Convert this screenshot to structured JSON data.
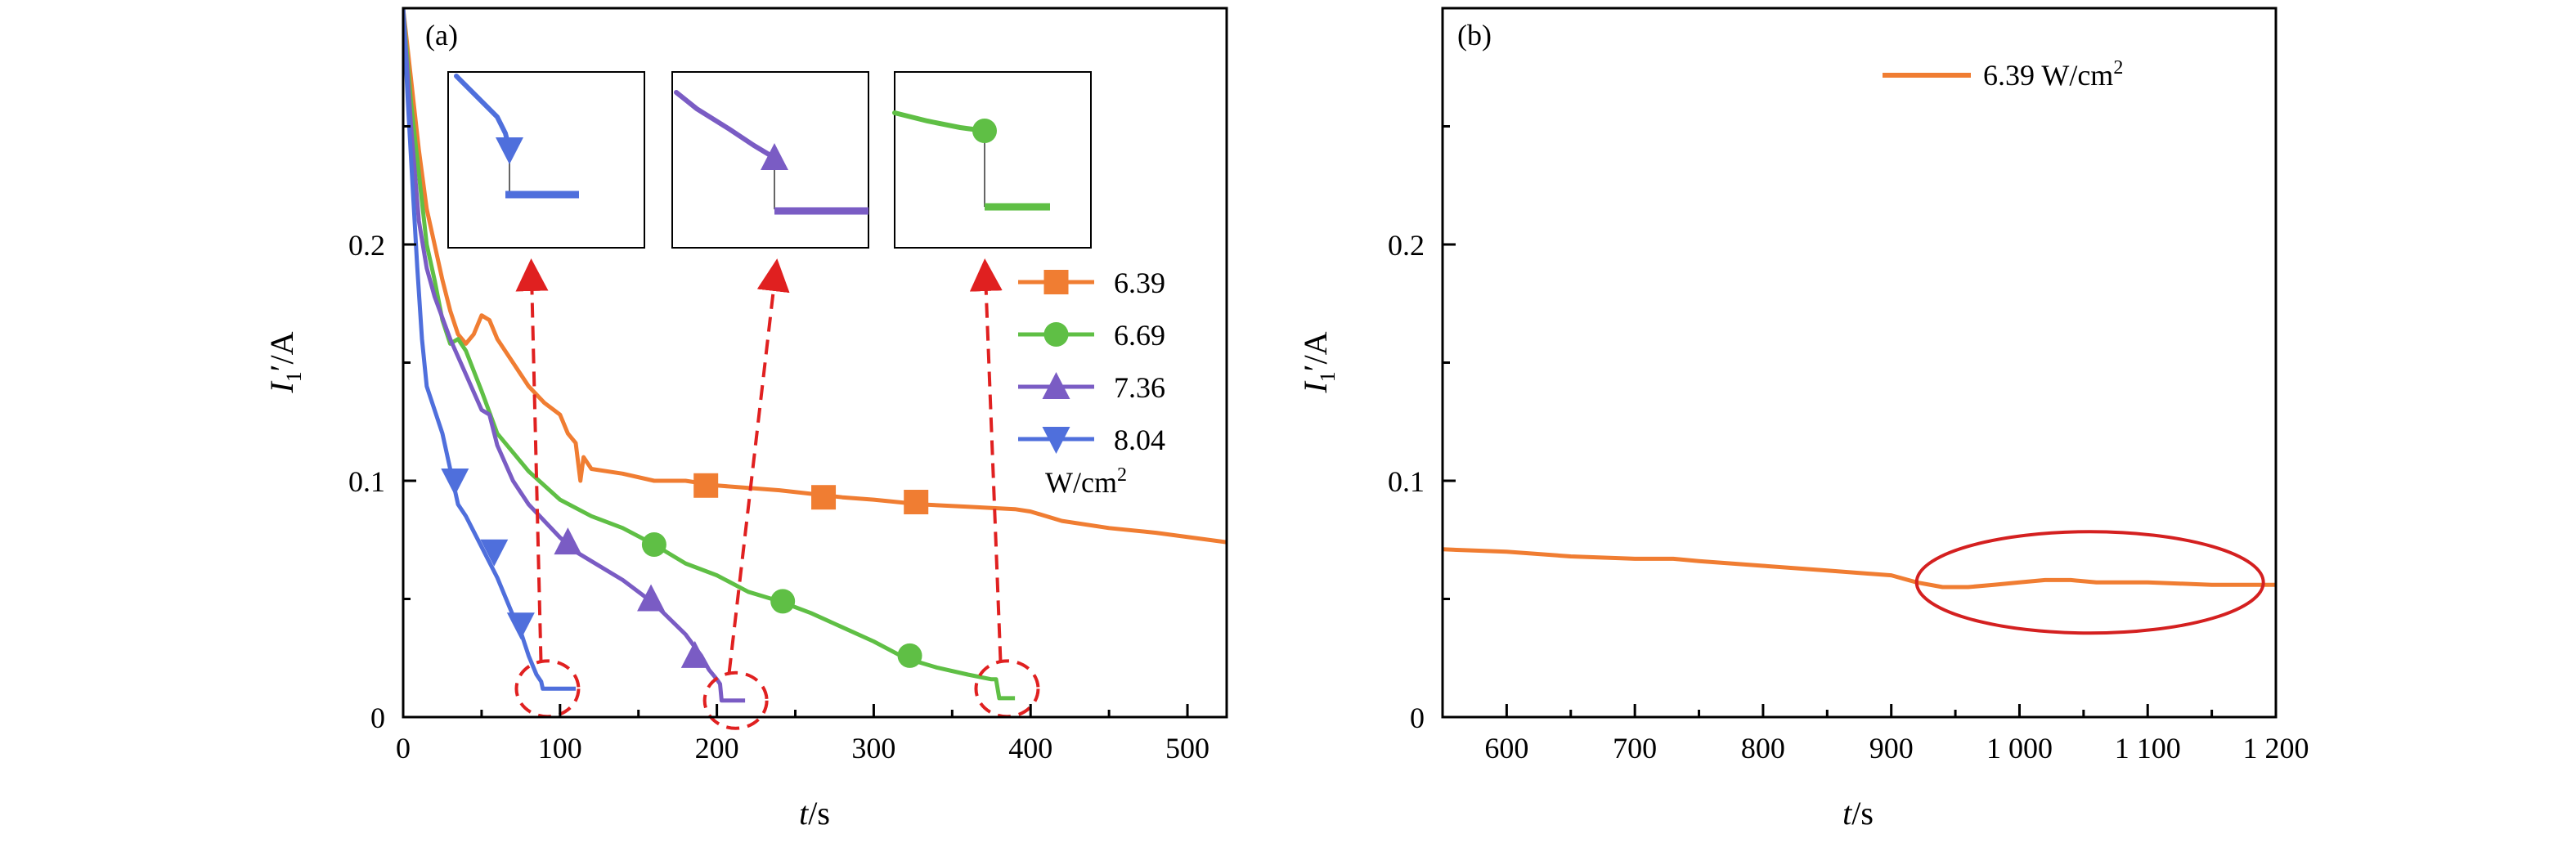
{
  "figure": {
    "panel_a_label": "(a)",
    "panel_b_label": "(b)"
  },
  "colors": {
    "s639": "#f07d32",
    "s669": "#5fbf45",
    "s736": "#7a5cc4",
    "s804": "#4f6fdc",
    "arrow": "#e02020",
    "ellipse": "#d42020"
  },
  "chart_data": [
    {
      "panel": "(a)",
      "type": "line",
      "ylabel_main": "I",
      "ylabel_sub": "1",
      "ylabel_rest": "′/A",
      "xlabel_main": "t",
      "xlabel_rest": "/s",
      "xlim": [
        0,
        525
      ],
      "ylim": [
        0,
        0.3
      ],
      "xticks": [
        0,
        100,
        200,
        300,
        400,
        500
      ],
      "xtick_labels": [
        "0",
        "100",
        "200",
        "300",
        "400",
        "500"
      ],
      "yticks": [
        0,
        0.1,
        0.2
      ],
      "ytick_labels": [
        "0",
        "0.1",
        "0.2"
      ],
      "legend_position": "right",
      "legend_unit_text": "W/cm",
      "legend_unit_sup": "2",
      "series": [
        {
          "name": "6.39",
          "color_key": "s639",
          "marker": "square",
          "x": [
            0,
            5,
            10,
            15,
            20,
            25,
            30,
            35,
            40,
            45,
            50,
            55,
            60,
            70,
            80,
            90,
            100,
            105,
            110,
            113,
            115,
            120,
            140,
            160,
            180,
            200,
            240,
            280,
            300,
            330,
            360,
            390,
            400,
            420,
            450,
            480,
            525
          ],
          "y": [
            0.3,
            0.27,
            0.24,
            0.215,
            0.2,
            0.185,
            0.172,
            0.162,
            0.158,
            0.162,
            0.17,
            0.168,
            0.16,
            0.15,
            0.14,
            0.133,
            0.128,
            0.12,
            0.116,
            0.1,
            0.11,
            0.105,
            0.103,
            0.1,
            0.1,
            0.098,
            0.096,
            0.093,
            0.092,
            0.09,
            0.089,
            0.088,
            0.087,
            0.083,
            0.08,
            0.078,
            0.074
          ],
          "marker_x": [
            193,
            268,
            327
          ],
          "marker_y": [
            0.098,
            0.093,
            0.091
          ]
        },
        {
          "name": "6.69",
          "color_key": "s669",
          "marker": "circle",
          "x": [
            0,
            5,
            10,
            15,
            20,
            25,
            30,
            35,
            40,
            50,
            60,
            70,
            80,
            100,
            120,
            140,
            160,
            180,
            200,
            220,
            240,
            260,
            280,
            300,
            320,
            340,
            360,
            375,
            378,
            380,
            382,
            390
          ],
          "y": [
            0.3,
            0.26,
            0.23,
            0.2,
            0.185,
            0.168,
            0.158,
            0.16,
            0.155,
            0.138,
            0.12,
            0.112,
            0.104,
            0.092,
            0.085,
            0.08,
            0.073,
            0.065,
            0.06,
            0.053,
            0.049,
            0.044,
            0.038,
            0.032,
            0.025,
            0.021,
            0.018,
            0.016,
            0.016,
            0.008,
            0.008,
            0.008
          ],
          "marker_x": [
            160,
            242,
            323
          ],
          "marker_y": [
            0.073,
            0.049,
            0.026
          ]
        },
        {
          "name": "7.36",
          "color_key": "s736",
          "marker": "triangle-up",
          "x": [
            0,
            5,
            10,
            15,
            20,
            30,
            40,
            50,
            55,
            60,
            70,
            80,
            90,
            100,
            110,
            120,
            140,
            160,
            180,
            190,
            195,
            200,
            202,
            203,
            205,
            210,
            218
          ],
          "y": [
            0.3,
            0.25,
            0.21,
            0.19,
            0.178,
            0.16,
            0.145,
            0.13,
            0.128,
            0.115,
            0.1,
            0.09,
            0.083,
            0.076,
            0.07,
            0.066,
            0.058,
            0.048,
            0.035,
            0.026,
            0.02,
            0.016,
            0.014,
            0.007,
            0.007,
            0.007,
            0.007
          ],
          "marker_x": [
            105,
            158,
            186
          ],
          "marker_y": [
            0.074,
            0.05,
            0.026
          ]
        },
        {
          "name": "8.04",
          "color_key": "s804",
          "marker": "triangle-down",
          "x": [
            0,
            3,
            6,
            9,
            12,
            15,
            20,
            25,
            30,
            35,
            40,
            50,
            60,
            70,
            75,
            80,
            85,
            88,
            89,
            90,
            100,
            110
          ],
          "y": [
            0.3,
            0.26,
            0.225,
            0.19,
            0.16,
            0.14,
            0.13,
            0.12,
            0.105,
            0.09,
            0.085,
            0.072,
            0.059,
            0.043,
            0.036,
            0.026,
            0.018,
            0.015,
            0.012,
            0.012,
            0.012,
            0.012
          ],
          "marker_x": [
            33,
            58,
            75
          ],
          "marker_y": [
            0.1,
            0.07,
            0.039
          ]
        }
      ]
    },
    {
      "panel": "(b)",
      "type": "line",
      "ylabel_main": "I",
      "ylabel_sub": "1",
      "ylabel_rest": "′/A",
      "xlabel_main": "t",
      "xlabel_rest": "/s",
      "xlim": [
        550,
        1200
      ],
      "ylim": [
        0,
        0.3
      ],
      "xticks": [
        600,
        700,
        800,
        900,
        1000,
        1100,
        1200
      ],
      "xtick_labels": [
        "600",
        "700",
        "800",
        "900",
        "1 000",
        "1 100",
        "1 200"
      ],
      "yticks": [
        0,
        0.1,
        0.2
      ],
      "ytick_labels": [
        "0",
        "0.1",
        "0.2"
      ],
      "legend_position": "top-right",
      "legend_text": "6.39 W/cm",
      "legend_sup": "2",
      "series": [
        {
          "name": "6.39 W/cm2",
          "color_key": "s639",
          "x": [
            550,
            600,
            650,
            700,
            730,
            750,
            800,
            850,
            900,
            920,
            940,
            960,
            980,
            1000,
            1020,
            1040,
            1060,
            1080,
            1100,
            1150,
            1200
          ],
          "y": [
            0.071,
            0.07,
            0.068,
            0.067,
            0.067,
            0.066,
            0.064,
            0.062,
            0.06,
            0.057,
            0.055,
            0.055,
            0.056,
            0.057,
            0.058,
            0.058,
            0.057,
            0.057,
            0.057,
            0.056,
            0.056
          ]
        }
      ]
    }
  ]
}
